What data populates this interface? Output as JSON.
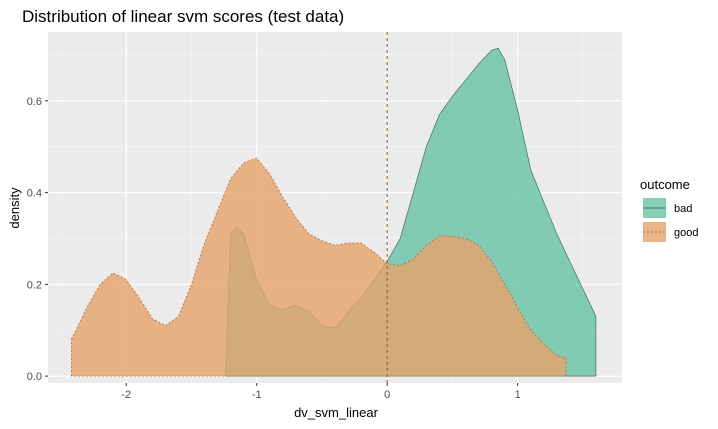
{
  "chart_data": {
    "type": "area",
    "title": "Distribution of linear svm scores (test data)",
    "xlabel": "dv_svm_linear",
    "ylabel": "density",
    "xlim": [
      -2.6,
      1.8
    ],
    "ylim": [
      -0.015,
      0.75
    ],
    "xticks": [
      -2,
      -1,
      0,
      1
    ],
    "yticks": [
      0.0,
      0.2,
      0.4,
      0.6
    ],
    "xtick_labels": [
      "-2",
      "-1",
      "0",
      "1"
    ],
    "ytick_labels": [
      "0.0",
      "0.2",
      "0.4",
      "0.6"
    ],
    "grid": true,
    "reference_line": {
      "x": 0,
      "style": "dashed",
      "color": "#8c5a2b"
    },
    "legend": {
      "title": "outcome",
      "placement": "right"
    },
    "series": [
      {
        "name": "bad",
        "color": "#66c2a5",
        "x": [
          -1.24,
          -1.2,
          -1.15,
          -1.1,
          -1.05,
          -1.0,
          -0.9,
          -0.8,
          -0.7,
          -0.6,
          -0.5,
          -0.4,
          -0.35,
          -0.3,
          -0.2,
          -0.1,
          0.0,
          0.1,
          0.2,
          0.3,
          0.4,
          0.5,
          0.6,
          0.7,
          0.8,
          0.85,
          0.9,
          1.0,
          1.1,
          1.2,
          1.3,
          1.4,
          1.5,
          1.6
        ],
        "y": [
          0.0,
          0.31,
          0.325,
          0.31,
          0.26,
          0.21,
          0.155,
          0.145,
          0.155,
          0.14,
          0.11,
          0.105,
          0.12,
          0.14,
          0.17,
          0.21,
          0.25,
          0.3,
          0.4,
          0.5,
          0.57,
          0.61,
          0.645,
          0.68,
          0.71,
          0.715,
          0.69,
          0.58,
          0.45,
          0.38,
          0.31,
          0.25,
          0.19,
          0.13
        ]
      },
      {
        "name": "good",
        "color": "#e6a36a",
        "x": [
          -2.42,
          -2.3,
          -2.2,
          -2.1,
          -2.0,
          -1.9,
          -1.8,
          -1.7,
          -1.6,
          -1.5,
          -1.4,
          -1.3,
          -1.2,
          -1.1,
          -1.0,
          -0.9,
          -0.8,
          -0.7,
          -0.6,
          -0.5,
          -0.4,
          -0.3,
          -0.2,
          -0.1,
          0.0,
          0.1,
          0.2,
          0.3,
          0.4,
          0.5,
          0.6,
          0.7,
          0.8,
          0.9,
          1.0,
          1.1,
          1.2,
          1.3,
          1.37
        ],
        "y": [
          0.08,
          0.15,
          0.2,
          0.225,
          0.21,
          0.17,
          0.125,
          0.11,
          0.13,
          0.2,
          0.29,
          0.36,
          0.43,
          0.465,
          0.475,
          0.44,
          0.39,
          0.345,
          0.31,
          0.295,
          0.285,
          0.29,
          0.29,
          0.27,
          0.245,
          0.24,
          0.255,
          0.285,
          0.305,
          0.305,
          0.3,
          0.285,
          0.25,
          0.2,
          0.15,
          0.1,
          0.07,
          0.045,
          0.04
        ]
      }
    ]
  }
}
